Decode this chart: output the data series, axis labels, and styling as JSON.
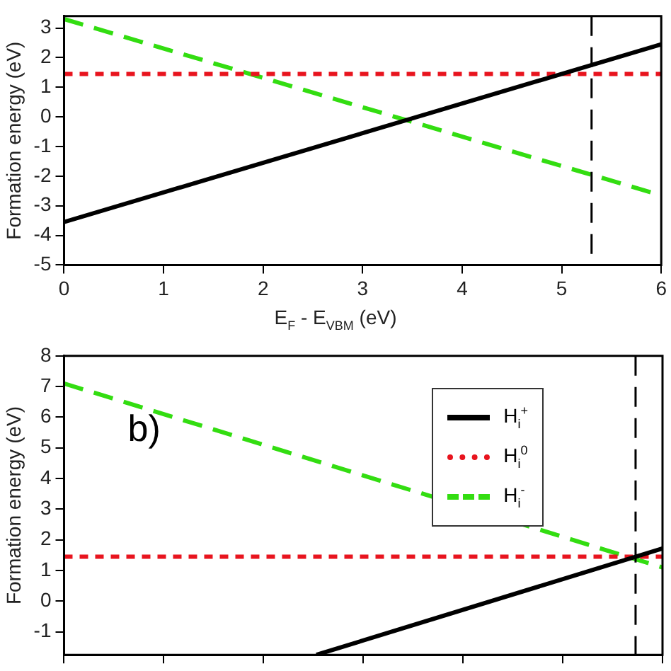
{
  "chart_data": [
    {
      "type": "line",
      "xlabel": "E$_{F}$ - E$_{VBM}$ (eV)",
      "ylabel": "Formation energy (eV)",
      "xlim": [
        0,
        6
      ],
      "xticks": [
        0,
        1,
        2,
        3,
        4,
        5,
        6
      ],
      "ylim": [
        -5,
        3.4
      ],
      "yticks": [
        -5,
        -4,
        -3,
        -2,
        -1,
        0,
        1,
        2,
        3
      ],
      "grid": false,
      "legend": false,
      "marker": "none",
      "series": [
        {
          "color": "#000000",
          "line_style": "solid",
          "x": [
            0,
            6
          ],
          "values": [
            -3.55,
            2.45
          ]
        },
        {
          "color": "#e8141e",
          "line_style": "dotted",
          "x": [
            0,
            6
          ],
          "values": [
            1.45,
            1.45
          ]
        },
        {
          "color": "#33dd11",
          "line_style": "dashed",
          "x": [
            0,
            6
          ],
          "values": [
            3.3,
            -2.65
          ]
        }
      ],
      "ref_lines": [
        {
          "axis": "x",
          "value": 5.3,
          "color": "#000000",
          "line_style": "dashed"
        }
      ]
    },
    {
      "type": "line",
      "ylabel": "Formation energy (eV)",
      "xlim": [
        0,
        6
      ],
      "xticks": [
        0,
        1,
        2,
        3,
        4,
        5,
        6
      ],
      "ylim": [
        -1.75,
        8
      ],
      "yticks": [
        -1,
        0,
        1,
        2,
        3,
        4,
        5,
        6,
        7,
        8
      ],
      "tick_labels": "y",
      "grid": false,
      "legend": "top right",
      "marker": "none",
      "annotations": [
        "b)"
      ],
      "series": [
        {
          "name": "H$_{i}$$^{+}$",
          "color": "#000000",
          "line_style": "solid",
          "x": [
            2.53,
            6
          ],
          "values": [
            -1.75,
            1.72
          ]
        },
        {
          "name": "H$_{i}$$^{0}$",
          "color": "#e8141e",
          "line_style": "dotted",
          "x": [
            0,
            6
          ],
          "values": [
            1.45,
            1.45
          ]
        },
        {
          "name": "H$_{i}$$^{-}$",
          "color": "#33dd11",
          "line_style": "dashed",
          "x": [
            0,
            6
          ],
          "values": [
            7.1,
            1.1
          ]
        }
      ],
      "ref_lines": [
        {
          "axis": "x",
          "value": 5.73,
          "color": "#000000",
          "line_style": "dashed"
        }
      ]
    }
  ]
}
